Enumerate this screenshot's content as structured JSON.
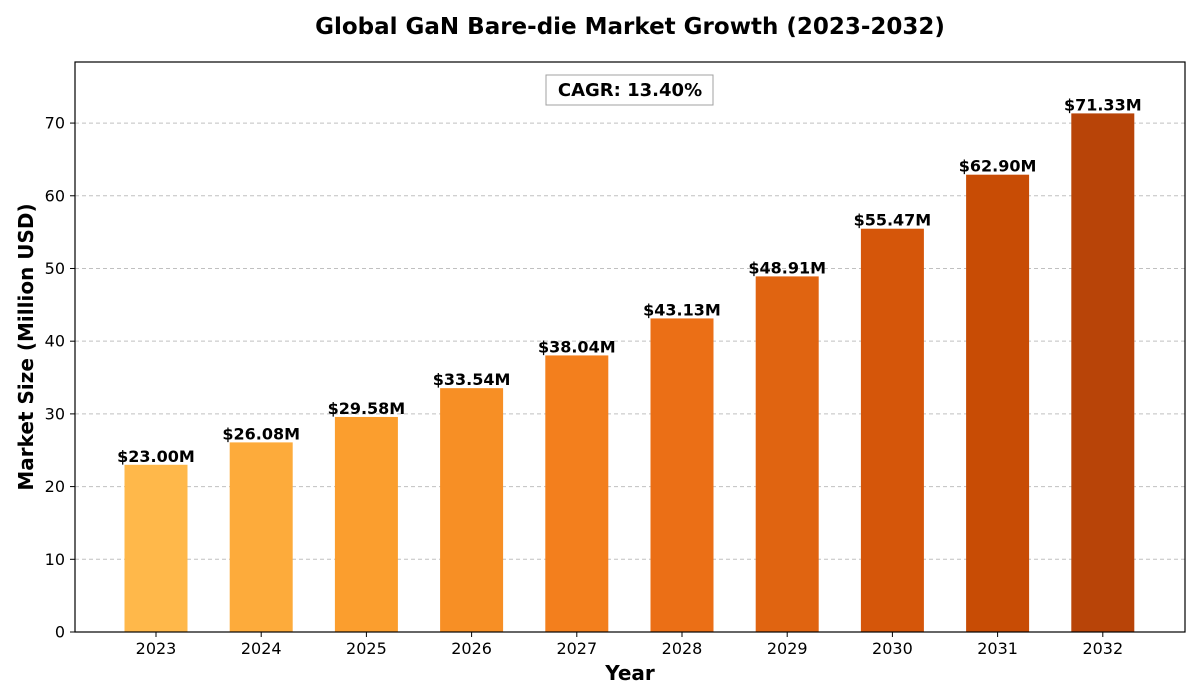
{
  "chart_data": {
    "type": "bar",
    "title": "Global GaN Bare-die Market Growth (2023-2032)",
    "xlabel": "Year",
    "ylabel": "Market Size (Million USD)",
    "ylim": [
      0,
      78.4
    ],
    "yticks": [
      0,
      10,
      20,
      30,
      40,
      50,
      60,
      70
    ],
    "grid": "y-dashed",
    "categories": [
      "2023",
      "2024",
      "2025",
      "2026",
      "2027",
      "2028",
      "2029",
      "2030",
      "2031",
      "2032"
    ],
    "values": [
      23.0,
      26.08,
      29.58,
      33.54,
      38.04,
      43.13,
      48.91,
      55.47,
      62.9,
      71.33
    ],
    "data_labels": [
      "$23.00M",
      "$26.08M",
      "$29.58M",
      "$33.54M",
      "$38.04M",
      "$43.13M",
      "$48.91M",
      "$55.47M",
      "$62.90M",
      "$71.33M"
    ],
    "bar_colors": [
      "#ffb84a",
      "#fdab3b",
      "#fb9e2e",
      "#f78f25",
      "#f37f1d",
      "#eb6f16",
      "#e06411",
      "#d5560a",
      "#c84c05",
      "#b84408"
    ],
    "annotation": "CAGR: 13.40%"
  }
}
